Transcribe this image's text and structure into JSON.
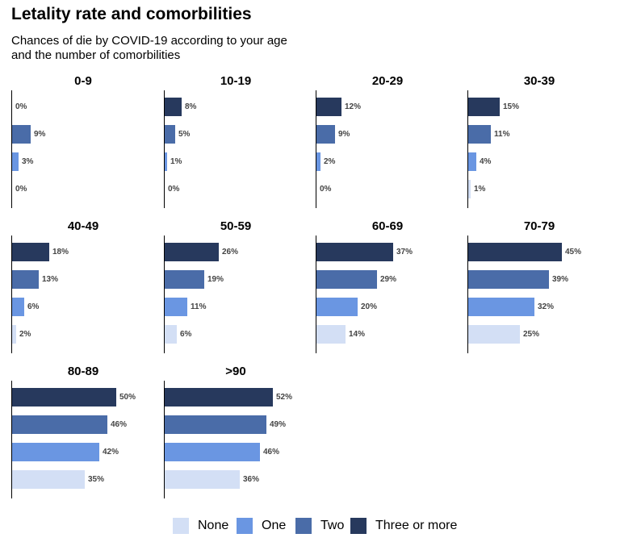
{
  "title": "Letality rate and comorbilities",
  "subtitle": "Chances of die by COVID-19 according to your age\nand the number of comorbilities",
  "chart_data": {
    "type": "bar",
    "orientation": "horizontal",
    "value_suffix": "%",
    "xlim": [
      0,
      60
    ],
    "categories": [
      "Three or more",
      "Two",
      "One",
      "None"
    ],
    "legend": [
      {
        "name": "None",
        "color": "#d3dff5"
      },
      {
        "name": "One",
        "color": "#6a96e2"
      },
      {
        "name": "Two",
        "color": "#4a6ca8"
      },
      {
        "name": "Three or more",
        "color": "#27395d"
      }
    ],
    "legend_position": "bottom",
    "panels": [
      {
        "name": "0-9",
        "values": [
          0,
          9,
          3,
          0
        ]
      },
      {
        "name": "10-19",
        "values": [
          8,
          5,
          1,
          0
        ]
      },
      {
        "name": "20-29",
        "values": [
          12,
          9,
          2,
          0
        ]
      },
      {
        "name": "30-39",
        "values": [
          15,
          11,
          4,
          1
        ]
      },
      {
        "name": "40-49",
        "values": [
          18,
          13,
          6,
          2
        ]
      },
      {
        "name": "50-59",
        "values": [
          26,
          19,
          11,
          6
        ]
      },
      {
        "name": "60-69",
        "values": [
          37,
          29,
          20,
          14
        ]
      },
      {
        "name": "70-79",
        "values": [
          45,
          39,
          32,
          25
        ]
      },
      {
        "name": "80-89",
        "values": [
          50,
          46,
          42,
          35
        ]
      },
      {
        "name": ">90",
        "values": [
          52,
          49,
          46,
          36
        ]
      }
    ]
  }
}
